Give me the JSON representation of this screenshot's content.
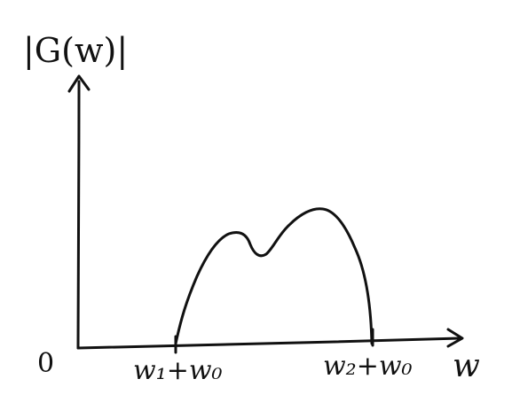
{
  "figure": {
    "y_axis_label": "|G(w)|",
    "x_axis_label": "w",
    "origin_label": "0",
    "x_ticks": [
      {
        "label": "w₁+w₀"
      },
      {
        "label": "w₂+w₀"
      }
    ],
    "curve": {
      "description_shape": "two-humped spectrum, smaller left peak, larger right peak, zero outside the band"
    },
    "colors": {
      "ink": "#111111",
      "background": "#ffffff"
    }
  }
}
